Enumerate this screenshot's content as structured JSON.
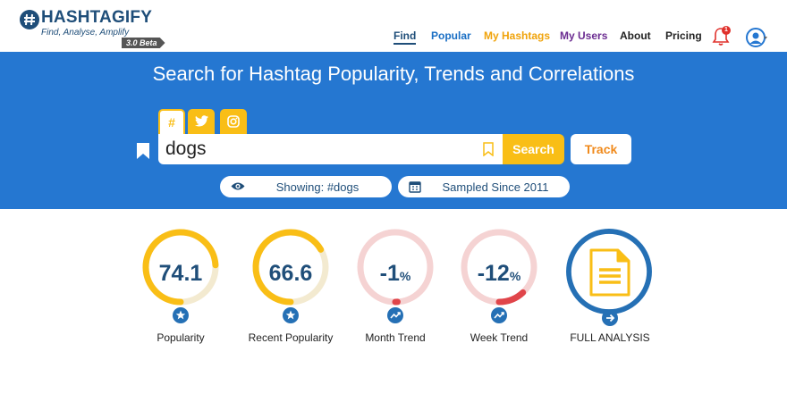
{
  "header": {
    "logo_name": "HASHTAGIFY",
    "logo_tagline": "Find, Analyse, Amplify",
    "version_badge": "3.0 Beta",
    "nav": [
      {
        "label": "Find"
      },
      {
        "label": "Popular"
      },
      {
        "label": "My Hashtags"
      },
      {
        "label": "My Users"
      },
      {
        "label": "About"
      },
      {
        "label": "Pricing"
      }
    ],
    "notification_count": "1",
    "icons": {
      "bell": "bell-icon",
      "avatar": "user-avatar-icon"
    }
  },
  "hero": {
    "title": "Search for Hashtag Popularity, Trends and Correlations",
    "tabs": [
      {
        "label": "#",
        "icon": "hashtag-icon",
        "active": true
      },
      {
        "label": "",
        "icon": "twitter-icon",
        "active": false
      },
      {
        "label": "",
        "icon": "instagram-icon",
        "active": false
      }
    ],
    "search": {
      "value": "dogs",
      "placeholder": ""
    },
    "search_button": "Search",
    "track_button": "Track",
    "showing": "Showing: #dogs",
    "sampled": "Sampled Since 2011",
    "colors": {
      "background": "#2577d1",
      "accent": "#f9be16",
      "track": "#f08a1c"
    }
  },
  "metrics": [
    {
      "label": "Popularity",
      "value": "74.1",
      "unit": "",
      "fraction": 0.741,
      "color": "#f9be16",
      "bg": "#f3ead0",
      "icon": "star-icon"
    },
    {
      "label": "Recent Popularity",
      "value": "66.6",
      "unit": "",
      "fraction": 0.666,
      "color": "#f9be16",
      "bg": "#f3ead0",
      "icon": "star-icon"
    },
    {
      "label": "Month Trend",
      "value": "-1",
      "unit": "%",
      "fraction": 0.01,
      "color": "#e0454a",
      "bg": "#f5d3d3",
      "icon": "trend-icon"
    },
    {
      "label": "Week Trend",
      "value": "-12",
      "unit": "%",
      "fraction": 0.12,
      "color": "#e0454a",
      "bg": "#f5d3d3",
      "icon": "trend-icon"
    },
    {
      "label": "FULL ANALYSIS",
      "value": "",
      "unit": "",
      "fraction": 1,
      "color": "#2570b5",
      "bg": "#2570b5",
      "icon": "document-icon"
    }
  ]
}
